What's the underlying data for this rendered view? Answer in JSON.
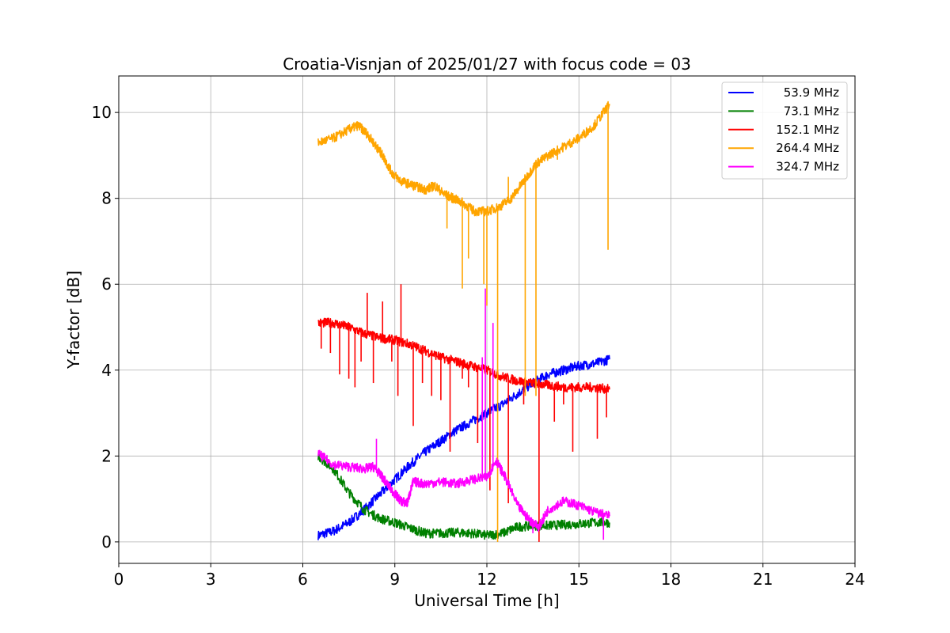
{
  "chart_data": {
    "type": "line",
    "title": "Croatia-Visnjan of 2025/01/27 with focus code = 03",
    "xlabel": "Universal Time [h]",
    "ylabel": "Y-factor [dB]",
    "xlim": [
      0,
      24
    ],
    "ylim": [
      -0.5,
      10.85
    ],
    "xticks": [
      0,
      3,
      6,
      9,
      12,
      15,
      18,
      21,
      24
    ],
    "xtick_labels": [
      "0",
      "3",
      "6",
      "9",
      "12",
      "15",
      "18",
      "21",
      "24"
    ],
    "yticks": [
      0,
      2,
      4,
      6,
      8,
      10
    ],
    "ytick_labels": [
      "0",
      "2",
      "4",
      "6",
      "8",
      "10"
    ],
    "grid": true,
    "legend_position": "top-right",
    "series": [
      {
        "name": "53.9 MHz",
        "color": "#0000ff",
        "x": [
          6.5,
          7.0,
          7.5,
          8.0,
          8.5,
          9.0,
          9.5,
          10.0,
          10.5,
          11.0,
          11.5,
          12.0,
          12.5,
          13.0,
          13.5,
          14.0,
          14.5,
          15.0,
          15.5,
          16.0
        ],
        "y": [
          0.15,
          0.25,
          0.45,
          0.75,
          1.1,
          1.45,
          1.8,
          2.1,
          2.35,
          2.6,
          2.8,
          3.0,
          3.2,
          3.45,
          3.7,
          3.9,
          4.0,
          4.1,
          4.15,
          4.25
        ],
        "spikes": []
      },
      {
        "name": "73.1 MHz",
        "color": "#008000",
        "x": [
          6.5,
          7.0,
          7.5,
          8.0,
          8.5,
          9.0,
          9.5,
          10.0,
          10.5,
          11.0,
          11.5,
          12.0,
          12.5,
          13.0,
          13.5,
          14.0,
          14.5,
          15.0,
          15.5,
          16.0
        ],
        "y": [
          2.0,
          1.7,
          1.15,
          0.75,
          0.55,
          0.45,
          0.32,
          0.2,
          0.2,
          0.22,
          0.2,
          0.15,
          0.2,
          0.35,
          0.38,
          0.38,
          0.4,
          0.42,
          0.45,
          0.45
        ],
        "spikes": []
      },
      {
        "name": "152.1 MHz",
        "color": "#ff0000",
        "x": [
          6.5,
          7.0,
          7.5,
          8.0,
          8.5,
          9.0,
          9.5,
          10.0,
          10.5,
          11.0,
          11.5,
          12.0,
          12.5,
          13.0,
          13.5,
          14.0,
          14.5,
          15.0,
          15.5,
          16.0
        ],
        "y": [
          5.1,
          5.1,
          5.0,
          4.85,
          4.75,
          4.7,
          4.6,
          4.45,
          4.3,
          4.2,
          4.1,
          4.0,
          3.85,
          3.75,
          3.7,
          3.65,
          3.6,
          3.6,
          3.6,
          3.55
        ],
        "spikes": [
          [
            6.6,
            4.5
          ],
          [
            6.9,
            4.4
          ],
          [
            7.2,
            3.9
          ],
          [
            7.5,
            3.8
          ],
          [
            7.7,
            3.6
          ],
          [
            7.9,
            4.2
          ],
          [
            8.1,
            5.8
          ],
          [
            8.3,
            3.7
          ],
          [
            8.6,
            5.6
          ],
          [
            8.9,
            4.2
          ],
          [
            9.1,
            3.4
          ],
          [
            9.2,
            6.0
          ],
          [
            9.6,
            2.7
          ],
          [
            9.9,
            3.7
          ],
          [
            10.2,
            3.4
          ],
          [
            10.5,
            3.3
          ],
          [
            10.8,
            2.1
          ],
          [
            11.2,
            3.8
          ],
          [
            11.4,
            3.6
          ],
          [
            11.7,
            2.3
          ],
          [
            12.1,
            1.2
          ],
          [
            12.7,
            0.9
          ],
          [
            13.2,
            3.2
          ],
          [
            13.7,
            0.0
          ],
          [
            14.2,
            2.8
          ],
          [
            14.5,
            3.2
          ],
          [
            14.8,
            2.1
          ],
          [
            15.6,
            2.4
          ],
          [
            15.9,
            2.9
          ]
        ]
      },
      {
        "name": "264.4 MHz",
        "color": "#ffa500",
        "x": [
          6.5,
          7.0,
          7.5,
          7.8,
          8.1,
          8.4,
          8.6,
          8.9,
          9.2,
          9.6,
          10.0,
          10.3,
          10.6,
          10.9,
          11.2,
          11.6,
          12.0,
          12.4,
          12.8,
          13.2,
          13.6,
          14.0,
          14.5,
          15.0,
          15.5,
          16.0
        ],
        "y": [
          9.3,
          9.4,
          9.6,
          9.7,
          9.5,
          9.2,
          9.0,
          8.6,
          8.4,
          8.3,
          8.2,
          8.3,
          8.1,
          8.0,
          7.9,
          7.7,
          7.7,
          7.8,
          8.0,
          8.4,
          8.8,
          9.0,
          9.2,
          9.4,
          9.7,
          10.2
        ],
        "spikes": [
          [
            10.7,
            7.3
          ],
          [
            11.2,
            5.9
          ],
          [
            11.4,
            6.6
          ],
          [
            11.9,
            6.0
          ],
          [
            12.0,
            5.5
          ],
          [
            12.35,
            0.0
          ],
          [
            12.7,
            8.5
          ],
          [
            13.25,
            3.4
          ],
          [
            13.6,
            3.4
          ],
          [
            14.3,
            8.9
          ],
          [
            15.95,
            6.8
          ]
        ]
      },
      {
        "name": "324.7 MHz",
        "color": "#ff00ff",
        "x": [
          6.5,
          7.0,
          7.5,
          8.0,
          8.3,
          8.6,
          8.9,
          9.2,
          9.4,
          9.6,
          10.0,
          10.5,
          11.0,
          11.5,
          12.0,
          12.3,
          12.6,
          13.0,
          13.4,
          13.7,
          14.0,
          14.5,
          15.0,
          15.5,
          16.0
        ],
        "y": [
          2.05,
          1.8,
          1.75,
          1.7,
          1.75,
          1.5,
          1.2,
          0.95,
          0.9,
          1.4,
          1.35,
          1.4,
          1.35,
          1.45,
          1.5,
          1.9,
          1.5,
          0.85,
          0.5,
          0.35,
          0.75,
          0.95,
          0.85,
          0.7,
          0.6
        ],
        "spikes": [
          [
            8.4,
            2.4
          ],
          [
            11.85,
            4.3
          ],
          [
            11.95,
            5.9
          ],
          [
            12.2,
            5.1
          ],
          [
            13.5,
            0.2
          ],
          [
            15.8,
            0.05
          ]
        ]
      }
    ]
  }
}
